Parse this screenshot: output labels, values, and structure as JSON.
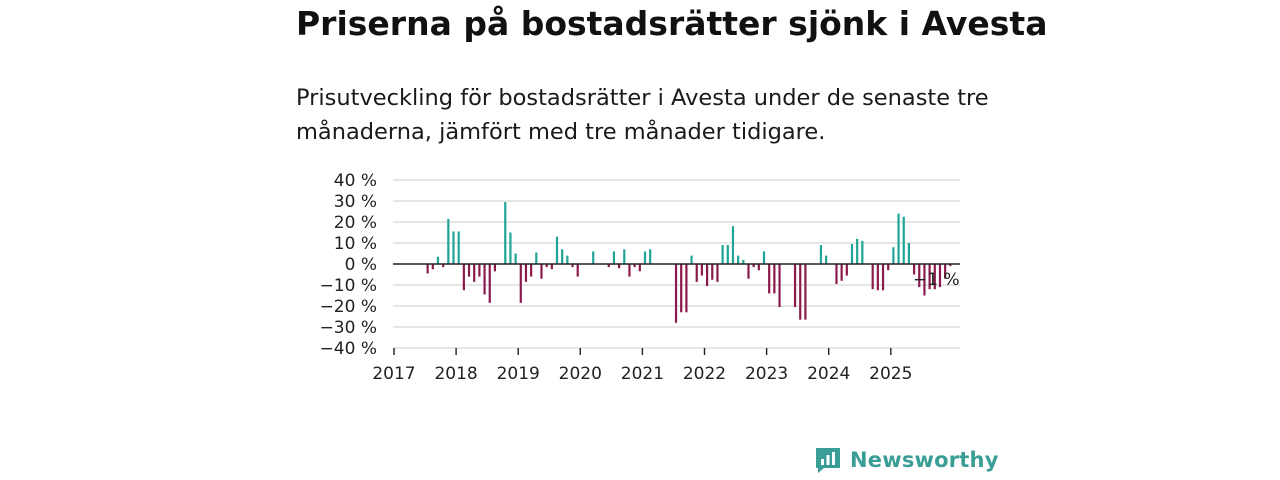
{
  "title": "Priserna på bostadsrätter sjönk i Avesta",
  "subtitle": "Prisutveckling för bostadsrätter i Avesta under de senaste tre månaderna, jämfört med tre månader tidigare.",
  "brand": "Newsworthy",
  "colors": {
    "positive": "#1fa595",
    "negative": "#8a1a4b",
    "brand": "#3a9e96",
    "grid": "#d8d8d8",
    "axis": "#222222"
  },
  "chart_data": {
    "type": "bar",
    "title": "Priserna på bostadsrätter sjönk i Avesta",
    "xlabel": "",
    "ylabel": "",
    "ylim": [
      -40,
      40
    ],
    "yticks": [
      40,
      30,
      20,
      10,
      0,
      -10,
      -20,
      -30,
      -40
    ],
    "ytick_labels": [
      "40 %",
      "30 %",
      "20 %",
      "10 %",
      "0 %",
      "−10 %",
      "−20 %",
      "−30 %",
      "−40 %"
    ],
    "xticks": [
      "2017",
      "2018",
      "2019",
      "2020",
      "2021",
      "2022",
      "2023",
      "2024",
      "2025"
    ],
    "x_start": "2017-01",
    "frequency": "monthly",
    "last_value_label": "−1 %",
    "values": [
      null,
      null,
      null,
      null,
      null,
      null,
      -4.5,
      -2.5,
      3.5,
      -1.5,
      21.5,
      15.5,
      15.5,
      -12.5,
      -6,
      -8.5,
      -6,
      -14.5,
      -18.5,
      -3.5,
      null,
      29.5,
      15,
      5,
      -18.5,
      -8.5,
      -6,
      5.5,
      -7,
      -1.5,
      -2.5,
      13,
      7,
      4,
      -1.5,
      -6,
      null,
      null,
      6,
      null,
      null,
      -1.5,
      6,
      -2,
      7,
      -6,
      -1.5,
      -3.5,
      6,
      7,
      null,
      null,
      null,
      null,
      -28,
      -23,
      -23,
      4,
      -8.5,
      -5.5,
      -10.5,
      -7.5,
      -8.5,
      9,
      9,
      18,
      4,
      2,
      -7,
      -1.5,
      -3,
      6,
      -14,
      -14,
      -20.5,
      null,
      null,
      -20.5,
      -26.5,
      -26.5,
      null,
      null,
      9,
      4,
      null,
      -9.5,
      -8,
      -5.5,
      9.5,
      12,
      11,
      null,
      -12,
      -12.5,
      -12.5,
      -3,
      8,
      24,
      22.5,
      10,
      -5,
      -11,
      -15,
      -12,
      -12,
      -11,
      -7,
      -1
    ]
  }
}
